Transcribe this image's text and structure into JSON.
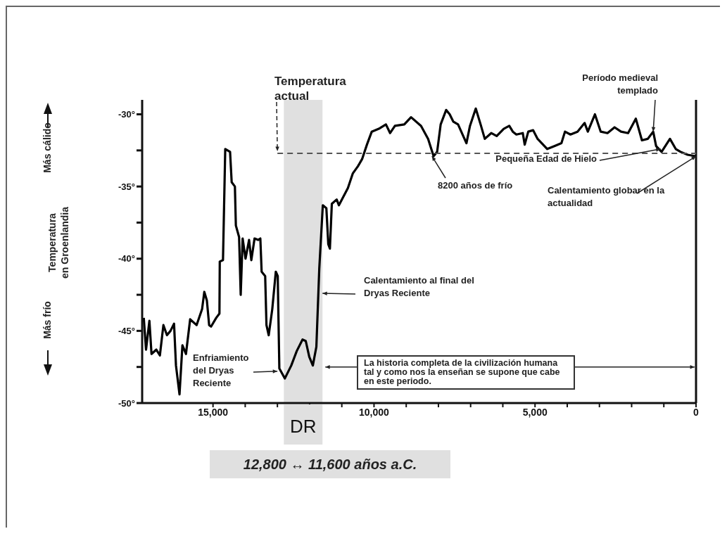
{
  "chart_data": {
    "type": "line",
    "ylabel": "Temperatura en Groenlandia",
    "xlim": [
      17200,
      0
    ],
    "ylim": [
      -50,
      -29
    ],
    "xticks": [
      {
        "value": 15000,
        "label": "15,000"
      },
      {
        "value": 14000,
        "label": null
      },
      {
        "value": 13000,
        "label": null
      },
      {
        "value": 12000,
        "label": null
      },
      {
        "value": 11000,
        "label": null
      },
      {
        "value": 10000,
        "label": "10,000"
      },
      {
        "value": 9000,
        "label": null
      },
      {
        "value": 8000,
        "label": null
      },
      {
        "value": 7000,
        "label": null
      },
      {
        "value": 6000,
        "label": null
      },
      {
        "value": 5000,
        "label": "5,000"
      },
      {
        "value": 4000,
        "label": null
      },
      {
        "value": 3000,
        "label": null
      },
      {
        "value": 2000,
        "label": null
      },
      {
        "value": 1000,
        "label": null
      },
      {
        "value": 0,
        "label": "0"
      }
    ],
    "yticks": [
      {
        "value": -50,
        "label": "-50°"
      },
      {
        "value": -47.5,
        "label": null
      },
      {
        "value": -45,
        "label": "-45°"
      },
      {
        "value": -42.5,
        "label": null
      },
      {
        "value": -40,
        "label": "-40°"
      },
      {
        "value": -37.5,
        "label": null
      },
      {
        "value": -35,
        "label": "-35°"
      },
      {
        "value": -32.5,
        "label": null
      },
      {
        "value": -30,
        "label": "-30°"
      }
    ],
    "marker": "none",
    "grid": false,
    "series": [
      {
        "color": "#000000",
        "x": [
          17150,
          17080,
          16975,
          16910,
          16760,
          16650,
          16540,
          16430,
          16320,
          16210,
          16150,
          16040,
          15950,
          15840,
          15710,
          15510,
          15340,
          15270,
          15190,
          15120,
          15060,
          14900,
          14800,
          14790,
          14690,
          14620,
          14470,
          14420,
          14320,
          14290,
          14190,
          14140,
          14080,
          13990,
          13880,
          13810,
          13710,
          13600,
          13530,
          13490,
          13380,
          13340,
          13270,
          13160,
          13050,
          12990,
          12940,
          12770,
          12570,
          12400,
          12220,
          12120,
          12010,
          11900,
          11790,
          11700,
          11590,
          11480,
          11420,
          11370,
          11310,
          11160,
          11090,
          10810,
          10660,
          10500,
          10370,
          10220,
          10070,
          9850,
          9630,
          9500,
          9350,
          9060,
          8850,
          8540,
          8320,
          8150,
          8040,
          7930,
          7760,
          7650,
          7540,
          7390,
          7130,
          7020,
          6840,
          6690,
          6560,
          6360,
          6190,
          5970,
          5800,
          5690,
          5580,
          5380,
          5320,
          5210,
          5060,
          4920,
          4620,
          4400,
          4180,
          4070,
          3900,
          3680,
          3460,
          3360,
          3140,
          2960,
          2750,
          2530,
          2330,
          2110,
          1870,
          1680,
          1500,
          1330,
          1240,
          1070,
          810,
          630,
          480,
          260,
          20,
          0
        ],
        "values": [
          -44.1,
          -46.3,
          -44.3,
          -46.6,
          -46.3,
          -46.7,
          -44.6,
          -45.3,
          -45.0,
          -44.5,
          -47.4,
          -49.4,
          -46.0,
          -46.6,
          -44.2,
          -44.6,
          -43.5,
          -42.3,
          -42.9,
          -44.6,
          -44.7,
          -44.1,
          -43.8,
          -40.2,
          -40.1,
          -32.4,
          -32.6,
          -34.7,
          -35.0,
          -37.7,
          -38.5,
          -42.5,
          -38.6,
          -40.0,
          -38.7,
          -40.1,
          -38.6,
          -38.7,
          -38.6,
          -40.9,
          -41.2,
          -44.6,
          -45.3,
          -43.5,
          -40.9,
          -41.2,
          -47.6,
          -48.3,
          -47.4,
          -46.4,
          -45.6,
          -45.7,
          -46.8,
          -47.4,
          -46.1,
          -40.7,
          -36.3,
          -36.5,
          -39.0,
          -39.3,
          -36.2,
          -35.9,
          -36.3,
          -35.1,
          -34.1,
          -33.6,
          -33.1,
          -32.1,
          -31.2,
          -31.0,
          -30.7,
          -31.3,
          -30.8,
          -30.7,
          -30.2,
          -30.8,
          -31.7,
          -32.9,
          -32.6,
          -30.7,
          -29.7,
          -30.0,
          -30.5,
          -30.7,
          -32.0,
          -30.8,
          -29.6,
          -30.7,
          -31.7,
          -31.3,
          -31.5,
          -31.0,
          -30.8,
          -31.2,
          -31.4,
          -31.3,
          -32.1,
          -31.2,
          -31.1,
          -31.7,
          -32.4,
          -32.2,
          -32.0,
          -31.2,
          -31.4,
          -31.2,
          -30.6,
          -31.2,
          -30.0,
          -31.2,
          -31.3,
          -30.9,
          -31.2,
          -31.3,
          -30.3,
          -31.8,
          -31.7,
          -31.2,
          -32.2,
          -32.6,
          -31.7,
          -32.4,
          -32.6,
          -32.8,
          -32.9,
          -32.9
        ]
      },
      {
        "color": "#555555",
        "line_style": "dashed",
        "x": [
          13000,
          0
        ],
        "values": [
          -32.7,
          -32.7
        ]
      }
    ],
    "bands": [
      {
        "axis": "x",
        "from": 12800,
        "to": 11600,
        "label": "DR",
        "color": "#e0e0e0"
      }
    ],
    "annotations": [
      {
        "text": "Temperatura actual",
        "x": 13000,
        "y": -32.7
      },
      {
        "text": "Período medieval templado",
        "x": 1330,
        "y": -31.2
      },
      {
        "text": "Pequeña Edad de Hielo",
        "x": 1100,
        "y": -32.4
      },
      {
        "text": "8200 años de frío",
        "x": 8200,
        "y": -32.9
      },
      {
        "text": "Calentamiento globar en la actualidad",
        "x": 0,
        "y": -32.9
      },
      {
        "text": "Calentamiento al final del Dryas Reciente",
        "x": 11600,
        "y": -42.4
      },
      {
        "text": "Enfriamiento del Dryas Reciente",
        "x": 13000,
        "y": -47.8
      },
      {
        "text": "La historia completa de la civilización humana tal y como nos la enseñan se supone que cabe en este periodo.",
        "x": 11600,
        "y": -47.5
      },
      "12,800 ↔ 11,600 años a.C.",
      "Más cálido",
      "Más frío"
    ]
  }
}
